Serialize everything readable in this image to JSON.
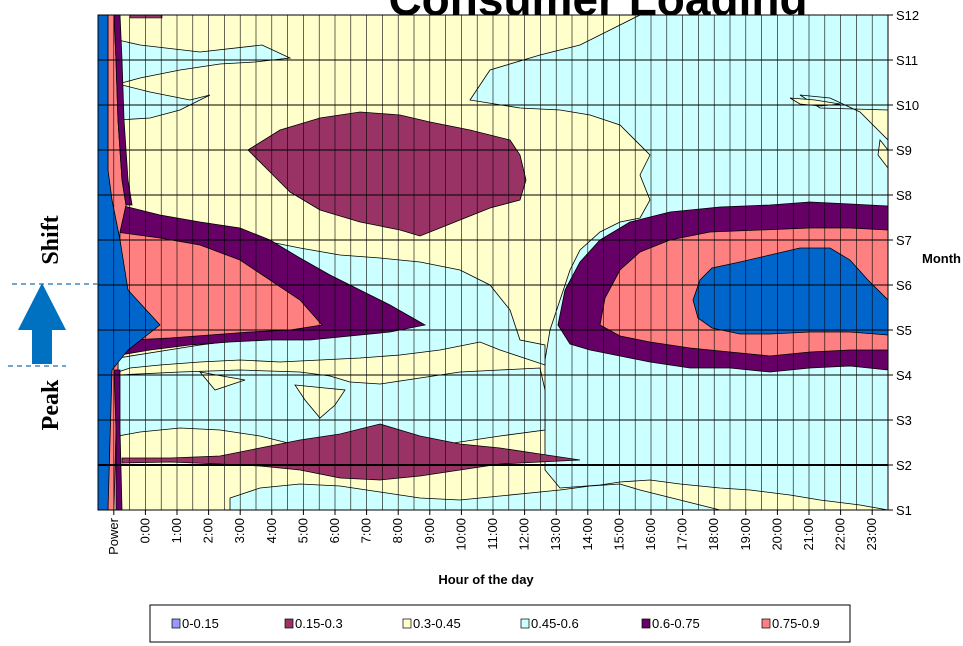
{
  "chart_data": {
    "type": "contour",
    "title": "Consumer Loading",
    "xlabel": "Hour of the day",
    "ylabel_right": "Month",
    "x_categories": [
      "Power",
      "0:00",
      "1:00",
      "2:00",
      "3:00",
      "4:00",
      "5:00",
      "6:00",
      "7:00",
      "8:00",
      "9:00",
      "10:00",
      "11:00",
      "12:00",
      "13:00",
      "14:00",
      "15:00",
      "16:00",
      "17:00",
      "18:00",
      "19:00",
      "20:00",
      "21:00",
      "22:00",
      "23:00"
    ],
    "y_categories": [
      "S1",
      "S2",
      "S3",
      "S4",
      "S5",
      "S6",
      "S7",
      "S8",
      "S9",
      "S10",
      "S11",
      "S12"
    ],
    "legend": [
      {
        "label": "0-0.15",
        "color": "#9999ff"
      },
      {
        "label": "0.15-0.3",
        "color": "#993366"
      },
      {
        "label": "0.3-0.45",
        "color": "#ffffcc"
      },
      {
        "label": "0.45-0.6",
        "color": "#ccffff"
      },
      {
        "label": "0.6-0.75",
        "color": "#660066"
      },
      {
        "label": "0.75-0.9",
        "color": "#ff8080"
      }
    ],
    "unlisted_band_color": "#0066cc",
    "annotation": {
      "text_bottom": "Peak",
      "text_top": "Shift",
      "arrow": "up"
    },
    "grid": true,
    "legend_position": "bottom"
  }
}
